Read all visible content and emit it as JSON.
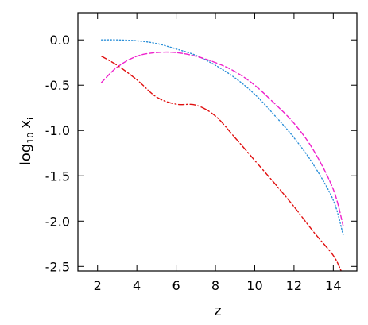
{
  "chart_data": {
    "type": "line",
    "title": "",
    "xlabel": "z",
    "ylabel": {
      "base": "log",
      "base_sub": "10",
      "var": "x",
      "var_sub": "i"
    },
    "xlim": [
      1.0,
      15.2
    ],
    "ylim": [
      -2.55,
      0.3
    ],
    "x_ticks": [
      2,
      4,
      6,
      8,
      10,
      12,
      14
    ],
    "y_ticks": [
      0.0,
      -0.5,
      -1.0,
      -1.5,
      -2.0,
      -2.5
    ],
    "y_tick_labels": [
      "0.0",
      "-0.5",
      "-1.0",
      "-1.5",
      "-2.0",
      "-2.5"
    ],
    "grid": false,
    "series": [
      {
        "style": "dotted",
        "color": "#2b8fd8",
        "x": [
          2.2,
          3.0,
          4.0,
          5.0,
          6.0,
          7.0,
          8.0,
          9.0,
          10.0,
          11.0,
          12.0,
          13.0,
          14.0,
          14.5
        ],
        "y": [
          0.0,
          0.0,
          -0.01,
          -0.04,
          -0.1,
          -0.17,
          -0.28,
          -0.42,
          -0.6,
          -0.83,
          -1.08,
          -1.38,
          -1.77,
          -2.15
        ]
      },
      {
        "style": "dashed",
        "color": "#ee22cc",
        "x": [
          2.2,
          3.0,
          4.0,
          5.0,
          6.0,
          7.0,
          8.0,
          9.0,
          10.0,
          11.0,
          12.0,
          13.0,
          14.0,
          14.5
        ],
        "y": [
          -0.47,
          -0.3,
          -0.18,
          -0.14,
          -0.14,
          -0.18,
          -0.25,
          -0.35,
          -0.5,
          -0.7,
          -0.92,
          -1.22,
          -1.65,
          -2.05
        ]
      },
      {
        "style": "dashdot",
        "color": "#e01010",
        "x": [
          2.2,
          3.0,
          4.0,
          5.0,
          6.0,
          7.0,
          8.0,
          9.0,
          10.0,
          11.0,
          12.0,
          13.0,
          14.0,
          14.4
        ],
        "y": [
          -0.18,
          -0.28,
          -0.44,
          -0.63,
          -0.71,
          -0.72,
          -0.84,
          -1.08,
          -1.33,
          -1.58,
          -1.84,
          -2.12,
          -2.38,
          -2.55
        ]
      }
    ]
  }
}
